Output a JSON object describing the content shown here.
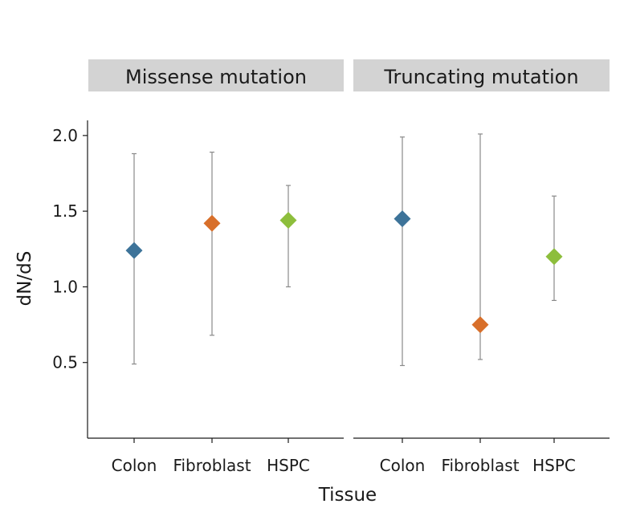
{
  "chart_data": {
    "type": "scatter",
    "subtype": "point-with-error-bars",
    "xlabel": "Tissue",
    "ylabel": "dN/dS",
    "ylim": [
      0.0,
      2.1
    ],
    "yticks": [
      "0.5",
      "1.0",
      "1.5",
      "2.0"
    ],
    "ytick_values": [
      0.5,
      1.0,
      1.5,
      2.0
    ],
    "categories": [
      "Colon",
      "Fibroblast",
      "HSPC"
    ],
    "category_colors": {
      "Colon": "#3d7399",
      "Fibroblast": "#d86f2a",
      "HSPC": "#8dbe3c"
    },
    "marker": "diamond",
    "grid": false,
    "panels": [
      {
        "title": "Missense mutation",
        "points": [
          {
            "category": "Colon",
            "value": 1.24,
            "lower": 0.49,
            "upper": 1.88
          },
          {
            "category": "Fibroblast",
            "value": 1.42,
            "lower": 0.68,
            "upper": 1.89
          },
          {
            "category": "HSPC",
            "value": 1.44,
            "lower": 1.0,
            "upper": 1.67
          }
        ]
      },
      {
        "title": "Truncating mutation",
        "points": [
          {
            "category": "Colon",
            "value": 1.45,
            "lower": 0.48,
            "upper": 1.99
          },
          {
            "category": "Fibroblast",
            "value": 0.75,
            "lower": 0.52,
            "upper": 2.01
          },
          {
            "category": "HSPC",
            "value": 1.2,
            "lower": 0.91,
            "upper": 1.6
          }
        ]
      }
    ]
  }
}
